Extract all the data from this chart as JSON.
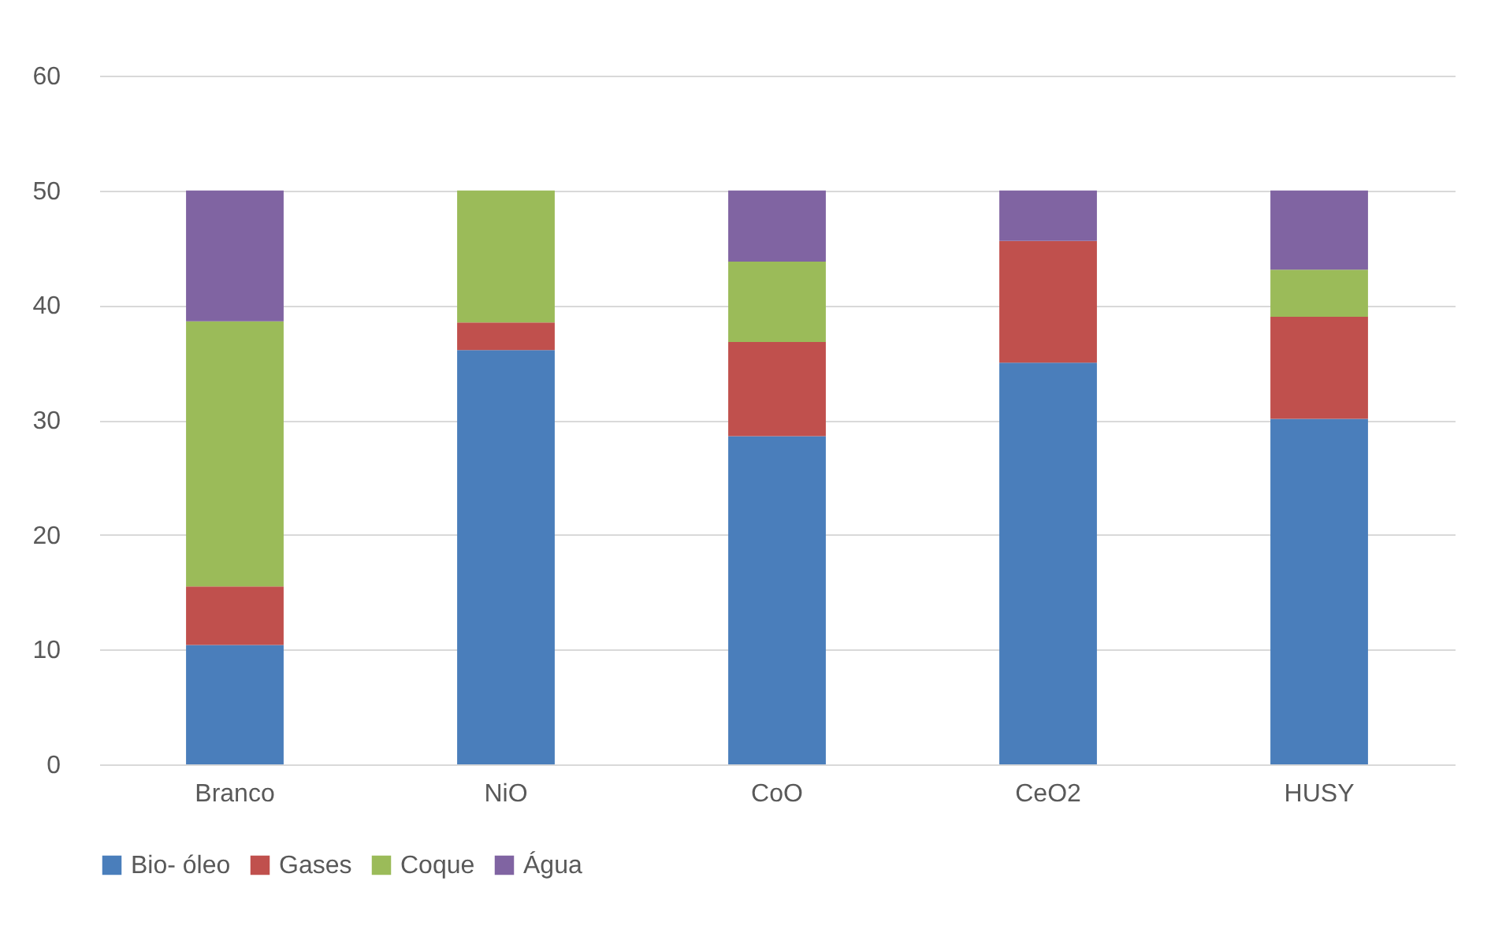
{
  "chart_data": {
    "type": "bar",
    "stacked": true,
    "categories": [
      "Branco",
      "NiO",
      "CoO",
      "CeO2",
      "HUSY"
    ],
    "series": [
      {
        "name": "Bio- óleo",
        "color": "#4a7ebb",
        "values": [
          10.4,
          36.1,
          28.6,
          35.0,
          30.1
        ]
      },
      {
        "name": "Gases",
        "color": "#c0504d",
        "values": [
          5.1,
          2.4,
          8.2,
          10.6,
          8.9
        ]
      },
      {
        "name": "Coque",
        "color": "#9bbb59",
        "values": [
          23.1,
          11.5,
          7.0,
          0,
          4.1
        ]
      },
      {
        "name": "Água",
        "color": "#8064a2",
        "values": [
          11.4,
          0,
          6.2,
          4.4,
          6.9
        ]
      }
    ],
    "ylim": [
      0,
      60
    ],
    "yticks": [
      0,
      10,
      20,
      30,
      40,
      50,
      60
    ],
    "grid": "y",
    "legend": "bottom"
  }
}
